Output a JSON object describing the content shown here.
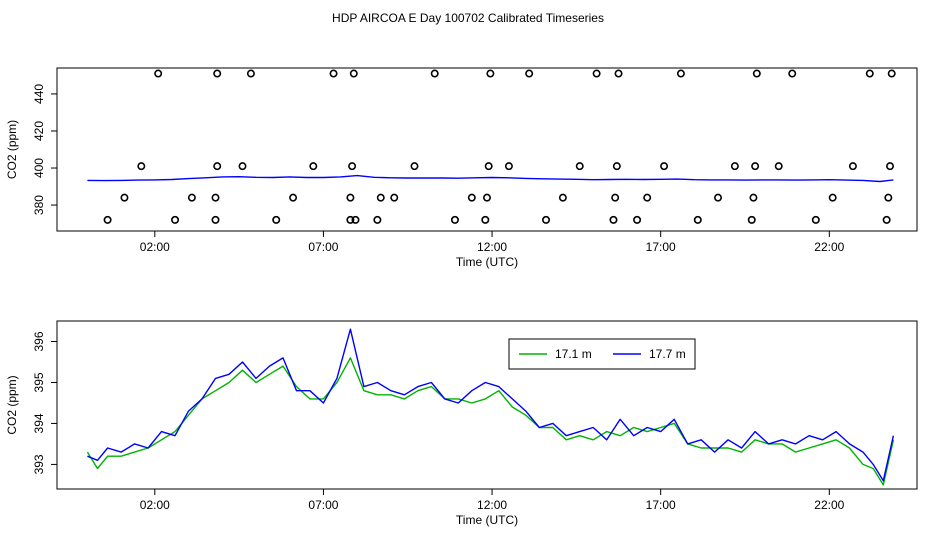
{
  "title": "HDP AIRCOA E  Day 100702  Calibrated Timeseries",
  "colors": {
    "green": "#00b400",
    "blue": "#0000ff",
    "axis": "#000000"
  },
  "chart_data": [
    {
      "type": "line",
      "panel": "top",
      "xlabel": "Time (UTC)",
      "ylabel": "CO2 (ppm)",
      "x_ticks": [
        2,
        7,
        12,
        17,
        22
      ],
      "x_tick_labels": [
        "02:00",
        "07:00",
        "12:00",
        "17:00",
        "22:00"
      ],
      "y_ticks": [
        380,
        400,
        420,
        440
      ],
      "xlim": [
        -0.9,
        24.6
      ],
      "ylim": [
        366,
        454
      ],
      "series": [
        {
          "line_color": "blue",
          "x": [
            0,
            0.5,
            1,
            1.5,
            2,
            2.5,
            3,
            3.5,
            4,
            4.5,
            5,
            5.5,
            6,
            6.5,
            7,
            7.5,
            8,
            8.5,
            9,
            9.5,
            10,
            10.5,
            11,
            11.5,
            12,
            12.5,
            13,
            13.5,
            14,
            14.5,
            15,
            15.5,
            16,
            16.5,
            17,
            17.5,
            18,
            18.5,
            19,
            19.5,
            20,
            20.5,
            21,
            21.5,
            22,
            22.5,
            23,
            23.5,
            23.9
          ],
          "y": [
            393.3,
            393.2,
            393.3,
            393.5,
            393.6,
            393.8,
            394.3,
            394.7,
            395.2,
            395.3,
            395.0,
            394.9,
            395.2,
            394.9,
            394.9,
            395.2,
            395.9,
            395.0,
            394.7,
            394.6,
            394.6,
            394.6,
            394.5,
            394.7,
            394.9,
            394.7,
            394.4,
            394.2,
            394.0,
            393.9,
            393.7,
            393.8,
            393.9,
            393.8,
            393.9,
            394.0,
            393.7,
            393.6,
            393.6,
            393.5,
            393.6,
            393.6,
            393.5,
            393.6,
            393.7,
            393.5,
            393.3,
            392.7,
            393.6
          ]
        }
      ],
      "markers": {
        "shape": "open-circle",
        "x": [
          0.6,
          1.1,
          1.6,
          2.1,
          2.6,
          3.1,
          3.8,
          3.8,
          3.85,
          3.85,
          4.6,
          4.85,
          5.6,
          6.1,
          6.7,
          7.3,
          7.8,
          7.8,
          7.85,
          7.9,
          7.95,
          8.6,
          8.7,
          9.1,
          9.7,
          10.3,
          10.9,
          11.4,
          11.8,
          11.85,
          11.9,
          11.95,
          12.5,
          13.1,
          13.6,
          14.1,
          14.6,
          15.1,
          15.6,
          15.65,
          15.7,
          15.75,
          16.3,
          16.6,
          17.1,
          17.6,
          18.1,
          18.7,
          19.2,
          19.7,
          19.75,
          19.8,
          19.85,
          20.5,
          20.9,
          21.6,
          22.1,
          22.7,
          23.2,
          23.7,
          23.75,
          23.8,
          23.85
        ],
        "y": [
          372,
          384,
          401,
          451,
          372,
          384,
          372,
          384,
          401,
          451,
          401,
          451,
          372,
          384,
          401,
          451,
          372,
          384,
          401,
          451,
          372,
          372,
          384,
          384,
          401,
          451,
          372,
          384,
          372,
          384,
          401,
          451,
          401,
          451,
          372,
          384,
          401,
          451,
          372,
          384,
          401,
          451,
          372,
          384,
          401,
          451,
          372,
          384,
          401,
          372,
          384,
          401,
          451,
          401,
          451,
          372,
          384,
          401,
          451,
          372,
          384,
          401,
          451
        ]
      }
    },
    {
      "type": "line",
      "panel": "bottom",
      "xlabel": "Time (UTC)",
      "ylabel": "CO2 (ppm)",
      "x_ticks": [
        2,
        7,
        12,
        17,
        22
      ],
      "x_tick_labels": [
        "02:00",
        "07:00",
        "12:00",
        "17:00",
        "22:00"
      ],
      "y_ticks": [
        393,
        394,
        395,
        396
      ],
      "xlim": [
        -0.9,
        24.6
      ],
      "ylim": [
        392.4,
        396.5
      ],
      "legend": {
        "position": "top-center"
      },
      "series": [
        {
          "name": "17.1 m",
          "line_color": "green",
          "x": [
            0,
            0.3,
            0.6,
            1,
            1.4,
            1.8,
            2.2,
            2.6,
            3.0,
            3.4,
            3.8,
            4.2,
            4.6,
            5.0,
            5.4,
            5.8,
            6.2,
            6.6,
            7.0,
            7.4,
            7.8,
            8.2,
            8.6,
            9.0,
            9.4,
            9.8,
            10.2,
            10.6,
            11.0,
            11.4,
            11.8,
            12.2,
            12.6,
            13.0,
            13.4,
            13.8,
            14.2,
            14.6,
            15.0,
            15.4,
            15.8,
            16.2,
            16.6,
            17.0,
            17.4,
            17.8,
            18.2,
            18.6,
            19.0,
            19.4,
            19.8,
            20.2,
            20.6,
            21.0,
            21.4,
            21.8,
            22.2,
            22.6,
            23.0,
            23.3,
            23.6,
            23.9
          ],
          "y": [
            393.3,
            392.9,
            393.2,
            393.2,
            393.3,
            393.4,
            393.6,
            393.8,
            394.2,
            394.6,
            394.8,
            395.0,
            395.3,
            395.0,
            395.2,
            395.4,
            394.9,
            394.6,
            394.6,
            395.0,
            395.6,
            394.8,
            394.7,
            394.7,
            394.6,
            394.8,
            394.9,
            394.6,
            394.6,
            394.5,
            394.6,
            394.8,
            394.4,
            394.2,
            393.9,
            393.9,
            393.6,
            393.7,
            393.6,
            393.8,
            393.7,
            393.9,
            393.8,
            393.9,
            394.0,
            393.5,
            393.4,
            393.4,
            393.4,
            393.3,
            393.6,
            393.5,
            393.5,
            393.3,
            393.4,
            393.5,
            393.6,
            393.4,
            393.0,
            392.9,
            392.5,
            393.6
          ]
        },
        {
          "name": "17.7 m",
          "line_color": "blue",
          "x": [
            0,
            0.3,
            0.6,
            1,
            1.4,
            1.8,
            2.2,
            2.6,
            3.0,
            3.4,
            3.8,
            4.2,
            4.6,
            5.0,
            5.4,
            5.8,
            6.2,
            6.6,
            7.0,
            7.4,
            7.8,
            8.2,
            8.6,
            9.0,
            9.4,
            9.8,
            10.2,
            10.6,
            11.0,
            11.4,
            11.8,
            12.2,
            12.6,
            13.0,
            13.4,
            13.8,
            14.2,
            14.6,
            15.0,
            15.4,
            15.8,
            16.2,
            16.6,
            17.0,
            17.4,
            17.8,
            18.2,
            18.6,
            19.0,
            19.4,
            19.8,
            20.2,
            20.6,
            21.0,
            21.4,
            21.8,
            22.2,
            22.6,
            23.0,
            23.3,
            23.6,
            23.9
          ],
          "y": [
            393.2,
            393.1,
            393.4,
            393.3,
            393.5,
            393.4,
            393.8,
            393.7,
            394.3,
            394.6,
            395.1,
            395.2,
            395.5,
            395.1,
            395.4,
            395.6,
            394.8,
            394.8,
            394.5,
            395.1,
            396.3,
            394.9,
            395.0,
            394.8,
            394.7,
            394.9,
            395.0,
            394.6,
            394.5,
            394.8,
            395.0,
            394.9,
            394.6,
            394.3,
            393.9,
            394.0,
            393.7,
            393.8,
            393.9,
            393.6,
            394.1,
            393.7,
            393.9,
            393.8,
            394.1,
            393.5,
            393.6,
            393.3,
            393.6,
            393.4,
            393.8,
            393.5,
            393.6,
            393.5,
            393.7,
            393.6,
            393.8,
            393.5,
            393.3,
            393.0,
            392.6,
            393.7
          ]
        }
      ]
    }
  ]
}
